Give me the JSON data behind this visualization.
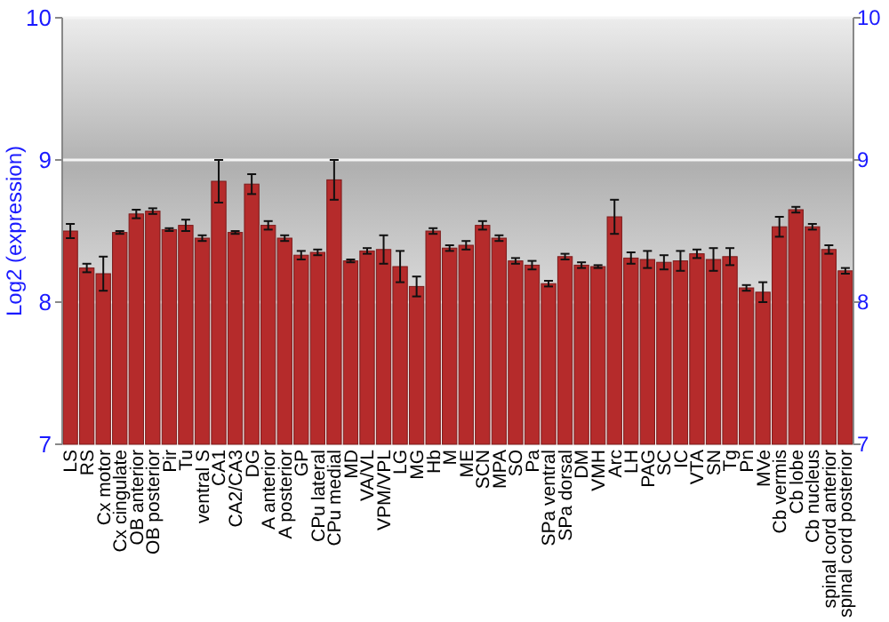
{
  "chart_data": {
    "type": "bar",
    "ylabel": "Log2 (expression)",
    "categories": [
      "LS",
      "RS",
      "Cx motor",
      "Cx cingulate",
      "OB anterior",
      "OB posterior",
      "Pir",
      "Tu",
      "ventral S",
      "CA1",
      "CA2/CA3",
      "DG",
      "A anterior",
      "A posterior",
      "GP",
      "CPu lateral",
      "CPu medial",
      "MD",
      "VA/VL",
      "VPM/VPL",
      "LG",
      "MG",
      "Hb",
      "M",
      "ME",
      "SCN",
      "MPA",
      "SO",
      "Pa",
      "SPa ventral",
      "SPa dorsal",
      "DM",
      "VMH",
      "Arc",
      "LH",
      "PAG",
      "SC",
      "IC",
      "VTA",
      "SN",
      "Tg",
      "Pn",
      "MVe",
      "Cb vermis",
      "Cb lobe",
      "Cb nucleus",
      "spinal cord anterior",
      "spinal cord posterior"
    ],
    "values": [
      8.5,
      8.24,
      8.2,
      8.49,
      8.62,
      8.64,
      8.51,
      8.54,
      8.45,
      8.85,
      8.49,
      8.83,
      8.54,
      8.45,
      8.33,
      8.35,
      8.86,
      8.29,
      8.36,
      8.37,
      8.25,
      8.11,
      8.5,
      8.38,
      8.4,
      8.54,
      8.45,
      8.29,
      8.26,
      8.13,
      8.32,
      8.26,
      8.25,
      8.6,
      8.31,
      8.3,
      8.28,
      8.29,
      8.34,
      8.3,
      8.32,
      8.1,
      8.07,
      8.53,
      8.65,
      8.53,
      8.37,
      8.22
    ],
    "errors": [
      0.05,
      0.03,
      0.12,
      0.01,
      0.03,
      0.02,
      0.01,
      0.04,
      0.02,
      0.15,
      0.01,
      0.07,
      0.03,
      0.02,
      0.03,
      0.02,
      0.14,
      0.01,
      0.02,
      0.1,
      0.11,
      0.07,
      0.02,
      0.02,
      0.03,
      0.03,
      0.02,
      0.02,
      0.03,
      0.02,
      0.02,
      0.02,
      0.01,
      0.12,
      0.04,
      0.06,
      0.05,
      0.07,
      0.03,
      0.08,
      0.06,
      0.02,
      0.07,
      0.07,
      0.02,
      0.02,
      0.03,
      0.02
    ],
    "color": "#b52b2b",
    "ylim": [
      7,
      10
    ],
    "yticks": [
      7,
      8,
      9,
      10
    ],
    "y2lim": [
      7,
      10
    ],
    "y2ticks": [
      7,
      8,
      9,
      10
    ],
    "grid": "y"
  }
}
